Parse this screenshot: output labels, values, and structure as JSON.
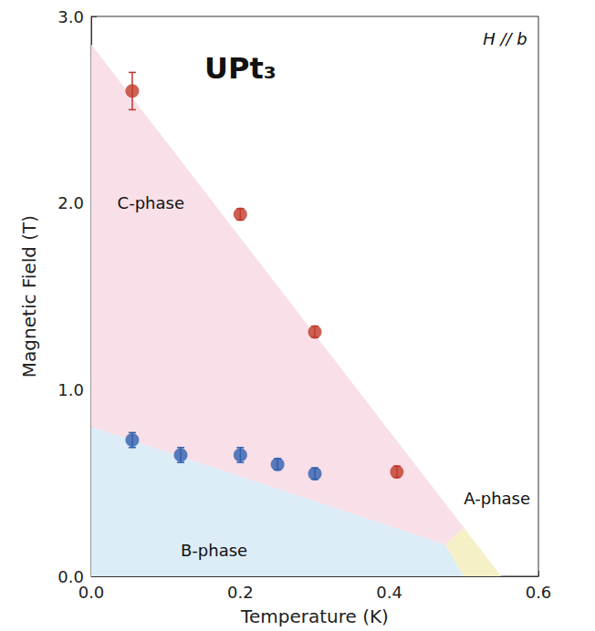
{
  "chart_data": {
    "type": "scatter",
    "title": "UPt₃",
    "subtitle": "H // b",
    "x_label": "Temperature (K)",
    "y_label": "Magnetic Field (T)",
    "xlim": [
      0,
      0.6
    ],
    "ylim": [
      0,
      3
    ],
    "xticks": [
      {
        "value": 0,
        "label": "0.0"
      },
      0.2,
      0.4,
      0.6
    ],
    "yticks": [
      {
        "value": 0,
        "label": "0.0"
      },
      {
        "value": 1,
        "label": "1.0"
      },
      {
        "value": 2,
        "label": "2.0"
      },
      {
        "value": 3,
        "label": "3.0"
      }
    ],
    "grid": false,
    "marker": "circle",
    "series": [
      {
        "color": "#c0392b",
        "x": [
          0.055,
          0.2,
          0.3,
          0.41
        ],
        "values": [
          2.6,
          1.94,
          1.31,
          0.56
        ],
        "errors": [
          0.1,
          0.03,
          0.03,
          0.03
        ]
      },
      {
        "color": "#2f5fae",
        "x": [
          0.055,
          0.12,
          0.2,
          0.25,
          0.3
        ],
        "values": [
          0.73,
          0.65,
          0.65,
          0.6,
          0.55
        ],
        "errors": [
          0.04,
          0.04,
          0.04,
          0.03,
          0.03
        ]
      }
    ],
    "regions": [
      {
        "label": "C-phase",
        "color": "#f8dfe8",
        "points": [
          [
            0,
            0.8
          ],
          [
            0,
            2.85
          ],
          [
            0.5,
            0.26
          ],
          [
            0.475,
            0.17
          ]
        ]
      },
      {
        "label": "B-phase",
        "color": "#dcedf7",
        "points": [
          [
            0,
            0
          ],
          [
            0,
            0.8
          ],
          [
            0.475,
            0.17
          ],
          [
            0.5,
            0
          ]
        ]
      },
      {
        "label": "A-phase",
        "color": "#f5f0c6",
        "points": [
          [
            0.475,
            0.17
          ],
          [
            0.5,
            0.26
          ],
          [
            0.55,
            0
          ],
          [
            0.5,
            0
          ]
        ]
      }
    ]
  }
}
